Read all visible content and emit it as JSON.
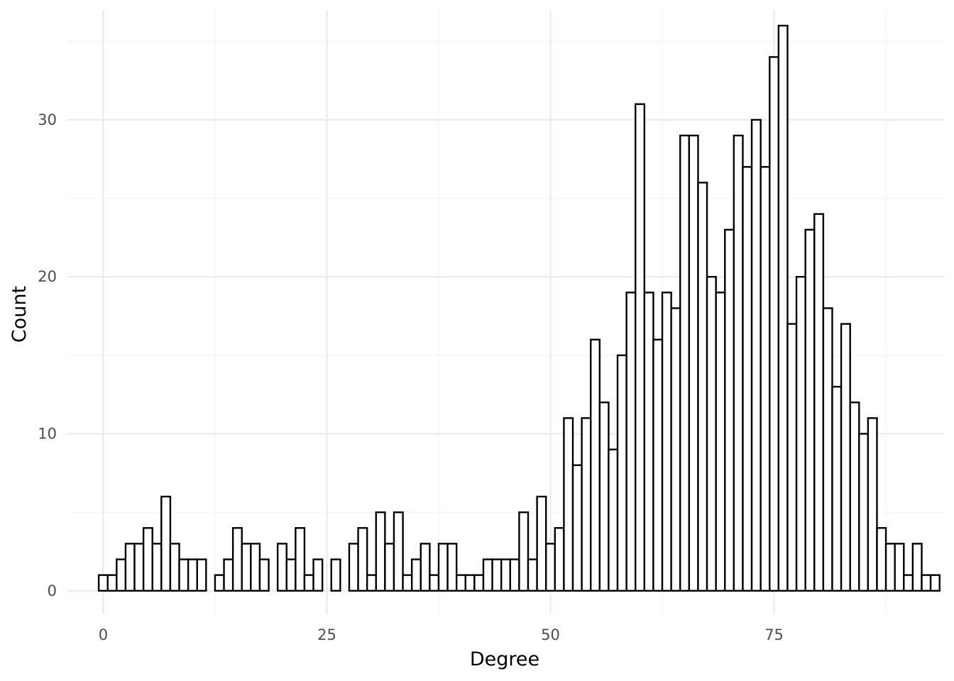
{
  "chart_data": {
    "type": "bar",
    "subtype": "histogram",
    "xlabel": "Degree",
    "ylabel": "Count",
    "xlim": [
      -4,
      94
    ],
    "ylim": [
      -1.5,
      37
    ],
    "x_ticks": [
      0,
      25,
      50,
      75
    ],
    "y_ticks": [
      0,
      10,
      20,
      30
    ],
    "grid": true,
    "bar_fill": "#ffffff",
    "bar_stroke": "#000000",
    "bins": [
      {
        "x": 0,
        "count": 1
      },
      {
        "x": 1,
        "count": 1
      },
      {
        "x": 2,
        "count": 2
      },
      {
        "x": 3,
        "count": 3
      },
      {
        "x": 4,
        "count": 3
      },
      {
        "x": 5,
        "count": 4
      },
      {
        "x": 6,
        "count": 3
      },
      {
        "x": 7,
        "count": 6
      },
      {
        "x": 8,
        "count": 3
      },
      {
        "x": 9,
        "count": 2
      },
      {
        "x": 10,
        "count": 2
      },
      {
        "x": 11,
        "count": 2
      },
      {
        "x": 13,
        "count": 1
      },
      {
        "x": 14,
        "count": 2
      },
      {
        "x": 15,
        "count": 4
      },
      {
        "x": 16,
        "count": 3
      },
      {
        "x": 17,
        "count": 3
      },
      {
        "x": 18,
        "count": 2
      },
      {
        "x": 20,
        "count": 3
      },
      {
        "x": 21,
        "count": 2
      },
      {
        "x": 22,
        "count": 4
      },
      {
        "x": 23,
        "count": 1
      },
      {
        "x": 24,
        "count": 2
      },
      {
        "x": 26,
        "count": 2
      },
      {
        "x": 28,
        "count": 3
      },
      {
        "x": 29,
        "count": 4
      },
      {
        "x": 30,
        "count": 1
      },
      {
        "x": 31,
        "count": 5
      },
      {
        "x": 32,
        "count": 3
      },
      {
        "x": 33,
        "count": 5
      },
      {
        "x": 34,
        "count": 1
      },
      {
        "x": 35,
        "count": 2
      },
      {
        "x": 36,
        "count": 3
      },
      {
        "x": 37,
        "count": 1
      },
      {
        "x": 38,
        "count": 3
      },
      {
        "x": 39,
        "count": 3
      },
      {
        "x": 40,
        "count": 1
      },
      {
        "x": 41,
        "count": 1
      },
      {
        "x": 42,
        "count": 1
      },
      {
        "x": 43,
        "count": 2
      },
      {
        "x": 44,
        "count": 2
      },
      {
        "x": 45,
        "count": 2
      },
      {
        "x": 46,
        "count": 2
      },
      {
        "x": 47,
        "count": 5
      },
      {
        "x": 48,
        "count": 2
      },
      {
        "x": 49,
        "count": 6
      },
      {
        "x": 50,
        "count": 3
      },
      {
        "x": 51,
        "count": 4
      },
      {
        "x": 52,
        "count": 11
      },
      {
        "x": 53,
        "count": 8
      },
      {
        "x": 54,
        "count": 11
      },
      {
        "x": 55,
        "count": 16
      },
      {
        "x": 56,
        "count": 12
      },
      {
        "x": 57,
        "count": 9
      },
      {
        "x": 58,
        "count": 15
      },
      {
        "x": 59,
        "count": 19
      },
      {
        "x": 60,
        "count": 31
      },
      {
        "x": 61,
        "count": 19
      },
      {
        "x": 62,
        "count": 16
      },
      {
        "x": 63,
        "count": 19
      },
      {
        "x": 64,
        "count": 18
      },
      {
        "x": 65,
        "count": 29
      },
      {
        "x": 66,
        "count": 29
      },
      {
        "x": 67,
        "count": 26
      },
      {
        "x": 68,
        "count": 20
      },
      {
        "x": 69,
        "count": 19
      },
      {
        "x": 70,
        "count": 23
      },
      {
        "x": 71,
        "count": 29
      },
      {
        "x": 72,
        "count": 27
      },
      {
        "x": 73,
        "count": 30
      },
      {
        "x": 74,
        "count": 27
      },
      {
        "x": 75,
        "count": 34
      },
      {
        "x": 76,
        "count": 36
      },
      {
        "x": 77,
        "count": 17
      },
      {
        "x": 78,
        "count": 20
      },
      {
        "x": 79,
        "count": 23
      },
      {
        "x": 80,
        "count": 24
      },
      {
        "x": 81,
        "count": 18
      },
      {
        "x": 82,
        "count": 13
      },
      {
        "x": 83,
        "count": 17
      },
      {
        "x": 84,
        "count": 12
      },
      {
        "x": 85,
        "count": 10
      },
      {
        "x": 86,
        "count": 11
      },
      {
        "x": 87,
        "count": 4
      },
      {
        "x": 88,
        "count": 3
      },
      {
        "x": 89,
        "count": 3
      },
      {
        "x": 90,
        "count": 1
      },
      {
        "x": 91,
        "count": 3
      },
      {
        "x": 92,
        "count": 1
      },
      {
        "x": 93,
        "count": 1
      }
    ]
  }
}
